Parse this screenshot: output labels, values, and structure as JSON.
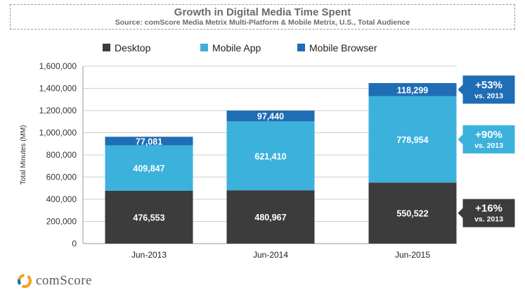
{
  "title": "Growth in Digital Media Time Spent",
  "subtitle": "Source: comScore Media Metrix Multi-Platform & Mobile Metrix, U.S., Total Audience",
  "brand": "comScore",
  "colors": {
    "desktop": "#3c3c3c",
    "mobile_app": "#3cb1dc",
    "mobile_browser": "#1f6db4",
    "axis": "#999999",
    "grid": "#cfcfcf"
  },
  "chart_data": {
    "type": "bar",
    "stacked": true,
    "categories": [
      "Jun-2013",
      "Jun-2014",
      "Jun-2015"
    ],
    "ylabel": "Total Minutes (MM)",
    "ylim": [
      0,
      1600000
    ],
    "yticks": [
      0,
      200000,
      400000,
      600000,
      800000,
      1000000,
      1200000,
      1400000,
      1600000
    ],
    "ytick_labels": [
      "0",
      "200,000",
      "400,000",
      "600,000",
      "800,000",
      "1,000,000",
      "1,200,000",
      "1,400,000",
      "1,600,000"
    ],
    "grid": true,
    "legend": "top-center",
    "series": [
      {
        "name": "Desktop",
        "values": [
          476553,
          480967,
          550522
        ],
        "labels": [
          "476,553",
          "480,967",
          "550,522"
        ],
        "color": "#3c3c3c"
      },
      {
        "name": "Mobile App",
        "values": [
          409847,
          621410,
          778954
        ],
        "labels": [
          "409,847",
          "621,410",
          "778,954"
        ],
        "color": "#3cb1dc"
      },
      {
        "name": "Mobile Browser",
        "values": [
          77081,
          97440,
          118299
        ],
        "labels": [
          "77,081",
          "97,440",
          "118,299"
        ],
        "color": "#1f6db4"
      }
    ],
    "annotations": [
      {
        "series": "Mobile Browser",
        "category": "Jun-2015",
        "big": "+53%",
        "small": "vs. 2013",
        "color": "#1f6db4"
      },
      {
        "series": "Mobile App",
        "category": "Jun-2015",
        "big": "+90%",
        "small": "vs. 2013",
        "color": "#3cb1dc"
      },
      {
        "series": "Desktop",
        "category": "Jun-2015",
        "big": "+16%",
        "small": "vs. 2013",
        "color": "#3c3c3c"
      }
    ]
  }
}
